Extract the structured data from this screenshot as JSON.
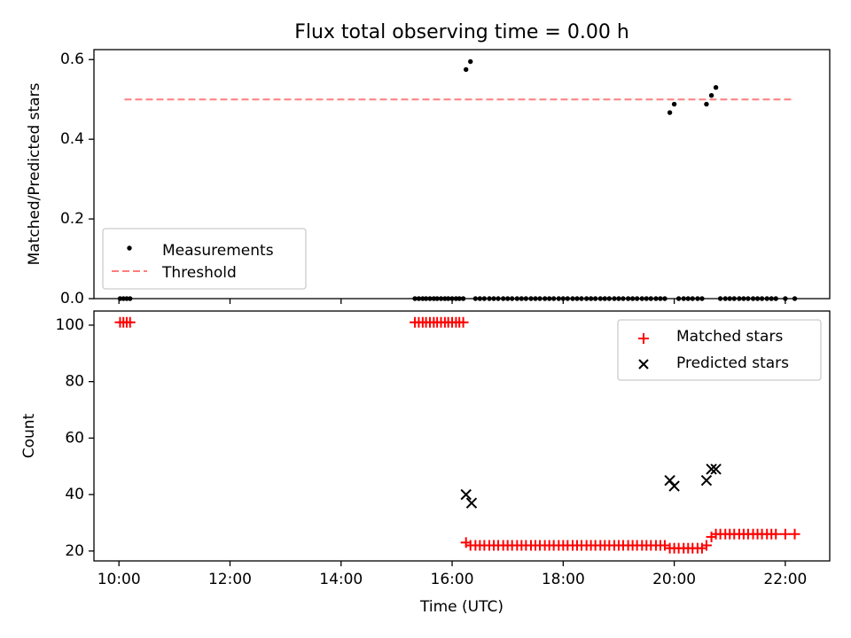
{
  "title": "Flux total observing time = 0.00 h",
  "chart_data": [
    {
      "type": "scatter",
      "ylabel": "Matched/Predicted stars",
      "xlim": [
        9.55,
        22.8
      ],
      "ylim": [
        0,
        0.625
      ],
      "yticks": [
        0.0,
        0.2,
        0.4,
        0.6
      ],
      "ytick_labels": [
        "0.0",
        "0.2",
        "0.4",
        "0.6"
      ],
      "grid": false,
      "legend_position": "lower-left",
      "series": [
        {
          "name": "Measurements",
          "type": "scatter",
          "color": "#000000",
          "marker": "dot",
          "points": [
            [
              10.02,
              0
            ],
            [
              10.08,
              0
            ],
            [
              10.14,
              0
            ],
            [
              10.2,
              0
            ],
            [
              15.33,
              0
            ],
            [
              15.4,
              0
            ],
            [
              15.47,
              0
            ],
            [
              15.53,
              0
            ],
            [
              15.6,
              0
            ],
            [
              15.67,
              0
            ],
            [
              15.73,
              0
            ],
            [
              15.8,
              0
            ],
            [
              15.87,
              0
            ],
            [
              15.93,
              0
            ],
            [
              16.0,
              0
            ],
            [
              16.07,
              0
            ],
            [
              16.13,
              0
            ],
            [
              16.2,
              0
            ],
            [
              16.25,
              0.575
            ],
            [
              16.33,
              0.595
            ],
            [
              16.42,
              0
            ],
            [
              16.5,
              0
            ],
            [
              16.58,
              0
            ],
            [
              16.67,
              0
            ],
            [
              16.75,
              0
            ],
            [
              16.83,
              0
            ],
            [
              16.92,
              0
            ],
            [
              17.0,
              0
            ],
            [
              17.08,
              0
            ],
            [
              17.17,
              0
            ],
            [
              17.25,
              0
            ],
            [
              17.33,
              0
            ],
            [
              17.42,
              0
            ],
            [
              17.5,
              0
            ],
            [
              17.58,
              0
            ],
            [
              17.67,
              0
            ],
            [
              17.75,
              0
            ],
            [
              17.83,
              0
            ],
            [
              17.92,
              0
            ],
            [
              18.0,
              0
            ],
            [
              18.08,
              0
            ],
            [
              18.17,
              0
            ],
            [
              18.25,
              0
            ],
            [
              18.33,
              0
            ],
            [
              18.42,
              0
            ],
            [
              18.5,
              0
            ],
            [
              18.58,
              0
            ],
            [
              18.67,
              0
            ],
            [
              18.75,
              0
            ],
            [
              18.83,
              0
            ],
            [
              18.92,
              0
            ],
            [
              19.0,
              0
            ],
            [
              19.08,
              0
            ],
            [
              19.17,
              0
            ],
            [
              19.25,
              0
            ],
            [
              19.33,
              0
            ],
            [
              19.42,
              0
            ],
            [
              19.5,
              0
            ],
            [
              19.58,
              0
            ],
            [
              19.67,
              0
            ],
            [
              19.75,
              0
            ],
            [
              19.83,
              0
            ],
            [
              19.92,
              0.467
            ],
            [
              20.0,
              0.488
            ],
            [
              20.08,
              0
            ],
            [
              20.17,
              0
            ],
            [
              20.25,
              0
            ],
            [
              20.33,
              0
            ],
            [
              20.42,
              0
            ],
            [
              20.5,
              0
            ],
            [
              20.58,
              0.488
            ],
            [
              20.67,
              0.51
            ],
            [
              20.75,
              0.53
            ],
            [
              20.83,
              0
            ],
            [
              20.92,
              0
            ],
            [
              21.0,
              0
            ],
            [
              21.08,
              0
            ],
            [
              21.17,
              0
            ],
            [
              21.25,
              0
            ],
            [
              21.33,
              0
            ],
            [
              21.42,
              0
            ],
            [
              21.5,
              0
            ],
            [
              21.58,
              0
            ],
            [
              21.67,
              0
            ],
            [
              21.75,
              0
            ],
            [
              21.83,
              0
            ],
            [
              22.0,
              0
            ],
            [
              22.17,
              0
            ]
          ]
        },
        {
          "name": "Threshold",
          "type": "line",
          "color": "#ff7f7f",
          "dash": "dashed",
          "x": [
            10.1,
            22.17
          ],
          "y": [
            0.5,
            0.5
          ]
        }
      ]
    },
    {
      "type": "scatter",
      "xlabel": "Time (UTC)",
      "ylabel": "Count",
      "xlim": [
        9.55,
        22.8
      ],
      "ylim": [
        16.5,
        105
      ],
      "xticks": [
        10,
        12,
        14,
        16,
        18,
        20,
        22
      ],
      "xtick_labels": [
        "10:00",
        "12:00",
        "14:00",
        "16:00",
        "18:00",
        "20:00",
        "22:00"
      ],
      "yticks": [
        20,
        40,
        60,
        80,
        100
      ],
      "ytick_labels": [
        "20",
        "40",
        "60",
        "80",
        "100"
      ],
      "grid": false,
      "legend_position": "upper-right",
      "series": [
        {
          "name": "Matched stars",
          "type": "scatter",
          "color": "#ff0000",
          "marker": "plus",
          "points": [
            [
              10.02,
              101
            ],
            [
              10.08,
              101
            ],
            [
              10.14,
              101
            ],
            [
              10.2,
              101
            ],
            [
              15.33,
              101
            ],
            [
              15.4,
              101
            ],
            [
              15.47,
              101
            ],
            [
              15.53,
              101
            ],
            [
              15.6,
              101
            ],
            [
              15.67,
              101
            ],
            [
              15.73,
              101
            ],
            [
              15.8,
              101
            ],
            [
              15.87,
              101
            ],
            [
              15.93,
              101
            ],
            [
              16.0,
              101
            ],
            [
              16.07,
              101
            ],
            [
              16.13,
              101
            ],
            [
              16.2,
              101
            ],
            [
              16.25,
              23
            ],
            [
              16.33,
              22
            ],
            [
              16.42,
              22
            ],
            [
              16.5,
              22
            ],
            [
              16.58,
              22
            ],
            [
              16.67,
              22
            ],
            [
              16.75,
              22
            ],
            [
              16.83,
              22
            ],
            [
              16.92,
              22
            ],
            [
              17.0,
              22
            ],
            [
              17.08,
              22
            ],
            [
              17.17,
              22
            ],
            [
              17.25,
              22
            ],
            [
              17.33,
              22
            ],
            [
              17.42,
              22
            ],
            [
              17.5,
              22
            ],
            [
              17.58,
              22
            ],
            [
              17.67,
              22
            ],
            [
              17.75,
              22
            ],
            [
              17.83,
              22
            ],
            [
              17.92,
              22
            ],
            [
              18.0,
              22
            ],
            [
              18.08,
              22
            ],
            [
              18.17,
              22
            ],
            [
              18.25,
              22
            ],
            [
              18.33,
              22
            ],
            [
              18.42,
              22
            ],
            [
              18.5,
              22
            ],
            [
              18.58,
              22
            ],
            [
              18.67,
              22
            ],
            [
              18.75,
              22
            ],
            [
              18.83,
              22
            ],
            [
              18.92,
              22
            ],
            [
              19.0,
              22
            ],
            [
              19.08,
              22
            ],
            [
              19.17,
              22
            ],
            [
              19.25,
              22
            ],
            [
              19.33,
              22
            ],
            [
              19.42,
              22
            ],
            [
              19.5,
              22
            ],
            [
              19.58,
              22
            ],
            [
              19.67,
              22
            ],
            [
              19.75,
              22
            ],
            [
              19.83,
              22
            ],
            [
              19.92,
              21
            ],
            [
              20.0,
              21
            ],
            [
              20.08,
              21
            ],
            [
              20.17,
              21
            ],
            [
              20.25,
              21
            ],
            [
              20.33,
              21
            ],
            [
              20.42,
              21
            ],
            [
              20.5,
              21
            ],
            [
              20.58,
              22
            ],
            [
              20.67,
              25
            ],
            [
              20.75,
              26
            ],
            [
              20.83,
              26
            ],
            [
              20.92,
              26
            ],
            [
              21.0,
              26
            ],
            [
              21.08,
              26
            ],
            [
              21.17,
              26
            ],
            [
              21.25,
              26
            ],
            [
              21.33,
              26
            ],
            [
              21.42,
              26
            ],
            [
              21.5,
              26
            ],
            [
              21.58,
              26
            ],
            [
              21.67,
              26
            ],
            [
              21.75,
              26
            ],
            [
              21.83,
              26
            ],
            [
              22.0,
              26
            ],
            [
              22.17,
              26
            ]
          ]
        },
        {
          "name": "Predicted stars",
          "type": "scatter",
          "color": "#000000",
          "marker": "x",
          "points": [
            [
              16.25,
              40
            ],
            [
              16.35,
              37
            ],
            [
              19.92,
              45
            ],
            [
              20.0,
              43
            ],
            [
              20.58,
              45
            ],
            [
              20.67,
              49
            ],
            [
              20.75,
              49
            ]
          ]
        }
      ]
    }
  ]
}
